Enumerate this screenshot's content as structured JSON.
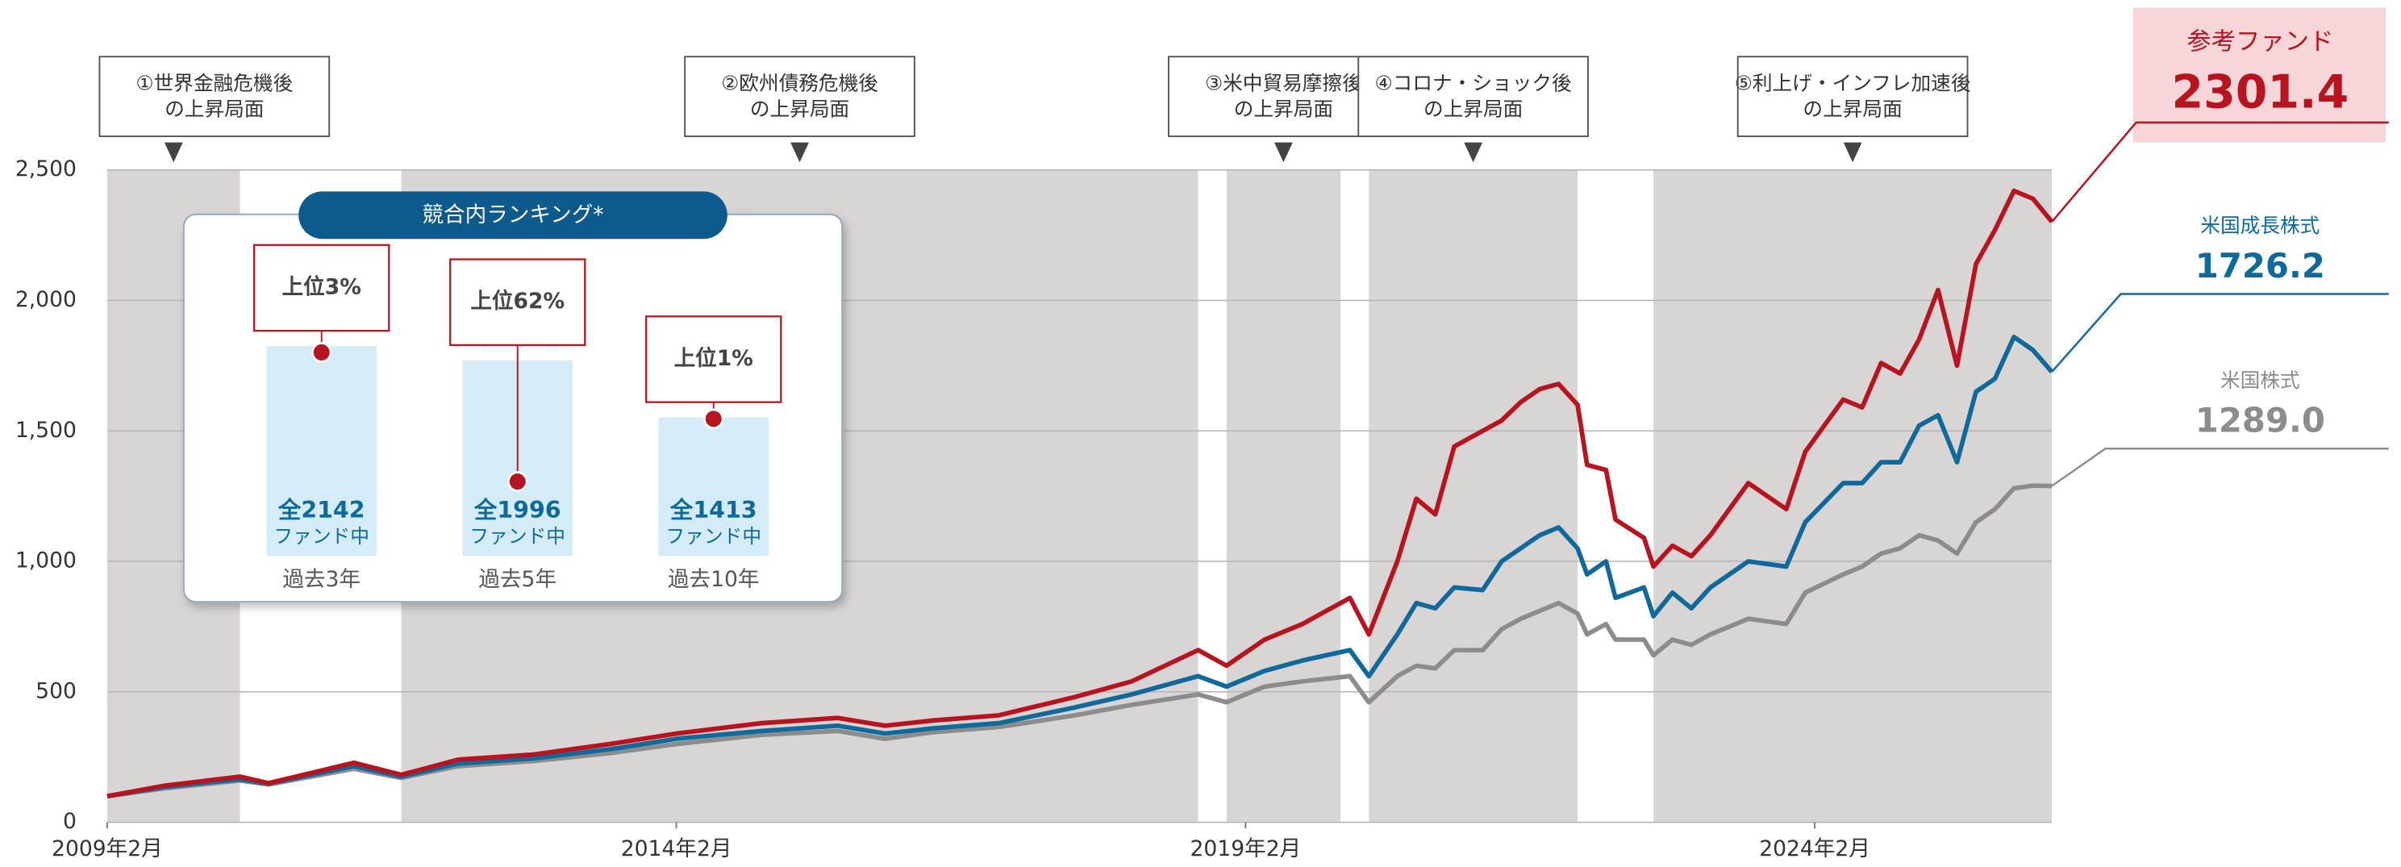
{
  "chart_data": {
    "type": "line",
    "x": [
      "2009-02",
      "2009-08",
      "2010-04",
      "2010-07",
      "2011-04",
      "2011-09",
      "2012-03",
      "2012-11",
      "2013-07",
      "2014-02",
      "2014-11",
      "2015-07",
      "2015-12",
      "2016-05",
      "2016-12",
      "2017-08",
      "2018-02",
      "2018-09",
      "2018-12",
      "2019-04",
      "2019-08",
      "2020-01",
      "2020-03",
      "2020-06",
      "2020-08",
      "2020-10",
      "2020-12",
      "2021-03",
      "2021-05",
      "2021-07",
      "2021-09",
      "2021-11",
      "2022-01",
      "2022-02",
      "2022-04",
      "2022-05",
      "2022-08",
      "2022-09",
      "2022-11",
      "2023-01",
      "2023-03",
      "2023-07",
      "2023-11",
      "2024-01",
      "2024-05",
      "2024-07",
      "2024-09",
      "2024-11",
      "2025-01",
      "2025-03",
      "2025-05",
      "2025-07",
      "2025-09",
      "2025-11",
      "2026-01",
      "2026-03"
    ],
    "series": [
      {
        "name": "参考ファンド",
        "color": "#b8141f",
        "values": [
          100,
          140,
          175,
          150,
          228,
          182,
          240,
          260,
          300,
          340,
          380,
          400,
          370,
          390,
          410,
          480,
          540,
          660,
          600,
          700,
          760,
          860,
          720,
          1000,
          1240,
          1180,
          1440,
          1500,
          1540,
          1610,
          1660,
          1680,
          1600,
          1370,
          1350,
          1160,
          1090,
          980,
          1060,
          1020,
          1100,
          1300,
          1200,
          1420,
          1620,
          1590,
          1760,
          1720,
          1850,
          2040,
          1750,
          2140,
          2270,
          2420,
          2390,
          2301.4
        ]
      },
      {
        "name": "米国成長株式",
        "color": "#0f6a9b",
        "values": [
          100,
          135,
          165,
          148,
          215,
          175,
          225,
          245,
          280,
          320,
          350,
          370,
          340,
          360,
          380,
          440,
          490,
          560,
          520,
          580,
          620,
          660,
          560,
          720,
          840,
          820,
          900,
          890,
          1000,
          1050,
          1100,
          1130,
          1050,
          950,
          1000,
          860,
          900,
          790,
          880,
          820,
          900,
          1000,
          980,
          1150,
          1300,
          1300,
          1380,
          1380,
          1520,
          1560,
          1380,
          1650,
          1700,
          1860,
          1810,
          1726.2
        ]
      },
      {
        "name": "米国株式",
        "color": "#8c8c8c",
        "values": [
          100,
          130,
          160,
          145,
          205,
          170,
          215,
          235,
          265,
          300,
          335,
          350,
          320,
          345,
          365,
          410,
          450,
          490,
          460,
          520,
          540,
          560,
          460,
          560,
          600,
          590,
          660,
          660,
          740,
          780,
          810,
          840,
          800,
          720,
          760,
          700,
          700,
          640,
          700,
          680,
          720,
          780,
          760,
          880,
          950,
          980,
          1030,
          1050,
          1100,
          1080,
          1030,
          1150,
          1200,
          1280,
          1290,
          1289.0
        ],
        "value_labels": [
          null,
          null,
          null,
          null,
          null,
          null,
          null,
          null,
          null,
          null,
          null,
          null,
          null,
          null,
          null,
          null,
          null,
          null,
          null,
          null,
          null,
          null,
          null,
          null,
          null,
          null,
          null,
          null,
          null,
          null,
          null,
          null,
          null,
          null,
          null,
          null,
          null,
          null,
          null,
          null,
          null,
          null,
          null,
          null,
          null,
          null,
          null,
          null,
          null,
          null,
          null,
          null,
          null,
          null,
          null,
          "1289.0"
        ]
      }
    ],
    "xlim": [
      "2009-02",
      "2026-03"
    ],
    "xticks": [
      {
        "value": "2009-02",
        "label": "2009年2月"
      },
      {
        "value": "2014-02",
        "label": "2014年2月"
      },
      {
        "value": "2019-02",
        "label": "2019年2月"
      },
      {
        "value": "2024-02",
        "label": "2024年2月"
      }
    ],
    "ylim": [
      0,
      2500
    ],
    "yticks": [
      0,
      500,
      {
        "value": 1000,
        "label": "1,000"
      },
      {
        "value": 1500,
        "label": "1,500"
      },
      {
        "value": 2000,
        "label": "2,000"
      },
      {
        "value": 2500,
        "label": "2,500"
      }
    ],
    "grid": true,
    "periods": [
      {
        "start": "2009-02",
        "end": "2010-04",
        "label": [
          "①世界金融危機後",
          "の上昇局面"
        ]
      },
      {
        "start": "2011-09",
        "end": "2018-09",
        "label": [
          "②欧州債務危機後",
          "の上昇局面"
        ]
      },
      {
        "start": "2018-12",
        "end": "2019-12",
        "label": [
          "③米中貿易摩擦後",
          "の上昇局面"
        ]
      },
      {
        "start": "2020-03",
        "end": "2022-01",
        "label": [
          "④コロナ・ショック後",
          "の上昇局面"
        ]
      },
      {
        "start": "2022-09",
        "end": "2026-03",
        "label": [
          "⑤利上げ・インフレ加速後",
          "の上昇局面"
        ]
      }
    ],
    "ranking": {
      "title": "競合内ランキング*",
      "items": [
        {
          "period": "過去3年",
          "top_percent": 3,
          "top_label": "上位3%",
          "total": 2142,
          "total_label": "全2142",
          "unit": "ファンド中"
        },
        {
          "period": "過去5年",
          "top_percent": 62,
          "top_label": "上位62%",
          "total": 1996,
          "total_label": "全1996",
          "unit": "ファンド中"
        },
        {
          "period": "過去10年",
          "top_percent": 1,
          "top_label": "上位1%",
          "total": 1413,
          "total_label": "全1413",
          "unit": "ファンド中"
        }
      ]
    }
  }
}
